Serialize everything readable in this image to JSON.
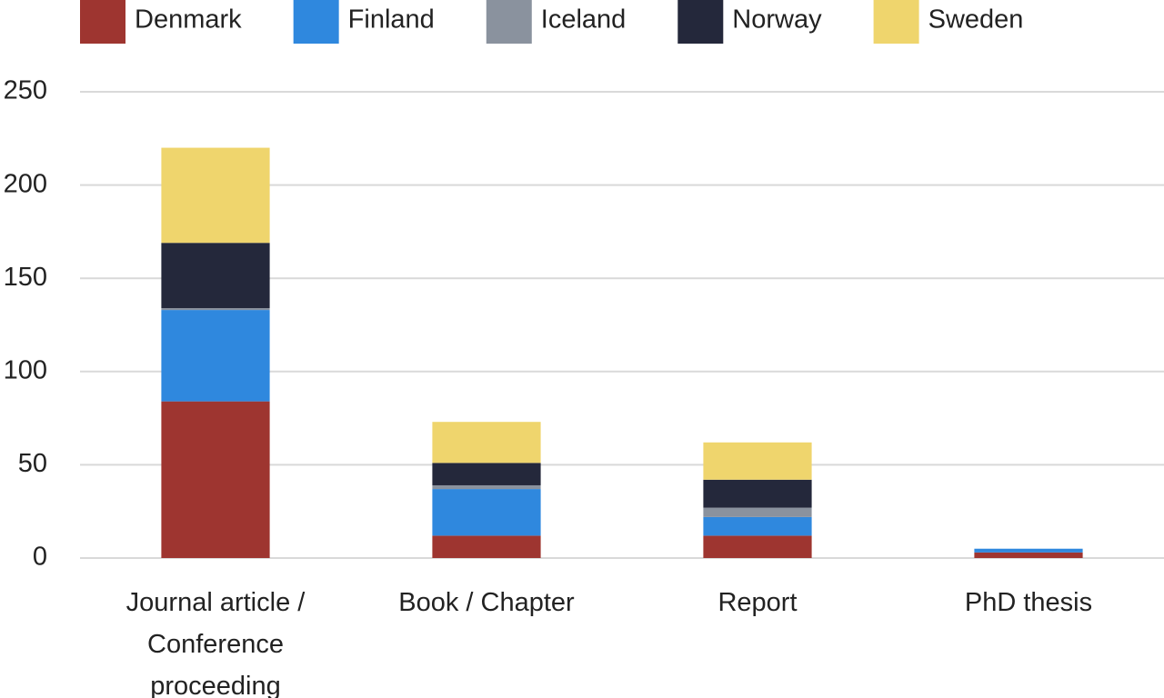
{
  "chart_data": {
    "type": "stacked_bar",
    "categories": [
      "Journal article / Conference proceeding",
      "Book / Chapter",
      "Report",
      "PhD thesis"
    ],
    "series": [
      {
        "name": "Denmark",
        "color": "#9e3530",
        "values": [
          84,
          12,
          12,
          3
        ]
      },
      {
        "name": "Finland",
        "color": "#2f88de",
        "values": [
          49,
          25,
          10,
          2
        ]
      },
      {
        "name": "Iceland",
        "color": "#8a929e",
        "values": [
          1,
          2,
          5,
          0
        ]
      },
      {
        "name": "Norway",
        "color": "#24283b",
        "values": [
          35,
          12,
          15,
          0
        ]
      },
      {
        "name": "Sweden",
        "color": "#efd56d",
        "values": [
          51,
          22,
          20,
          0
        ]
      }
    ],
    "ylim": [
      0,
      250
    ],
    "yticks": [
      0,
      50,
      100,
      150,
      200,
      250
    ],
    "grid": true,
    "legend": "top"
  }
}
